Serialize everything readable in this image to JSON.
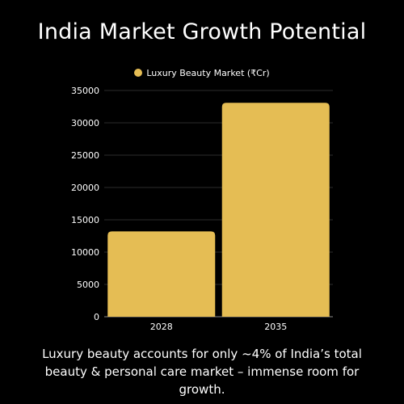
{
  "title": "India Market Growth Potential",
  "caption": "Luxury beauty accounts for only ~4% of India’s total beauty & personal care market – immense room for growth.",
  "colors": {
    "background": "#000000",
    "bar": "#e5bd54",
    "text": "#ffffff"
  },
  "chart_data": {
    "type": "bar",
    "categories": [
      "2028",
      "2035"
    ],
    "series": [
      {
        "name": "Luxury Beauty Market (₹Cr)",
        "values": [
          13200,
          33100
        ]
      }
    ],
    "ylim": [
      0,
      35000
    ],
    "yticks": [
      "0",
      "5000",
      "10000",
      "15000",
      "20000",
      "25000",
      "30000",
      "35000"
    ],
    "legend_position": "top",
    "grid": true
  }
}
